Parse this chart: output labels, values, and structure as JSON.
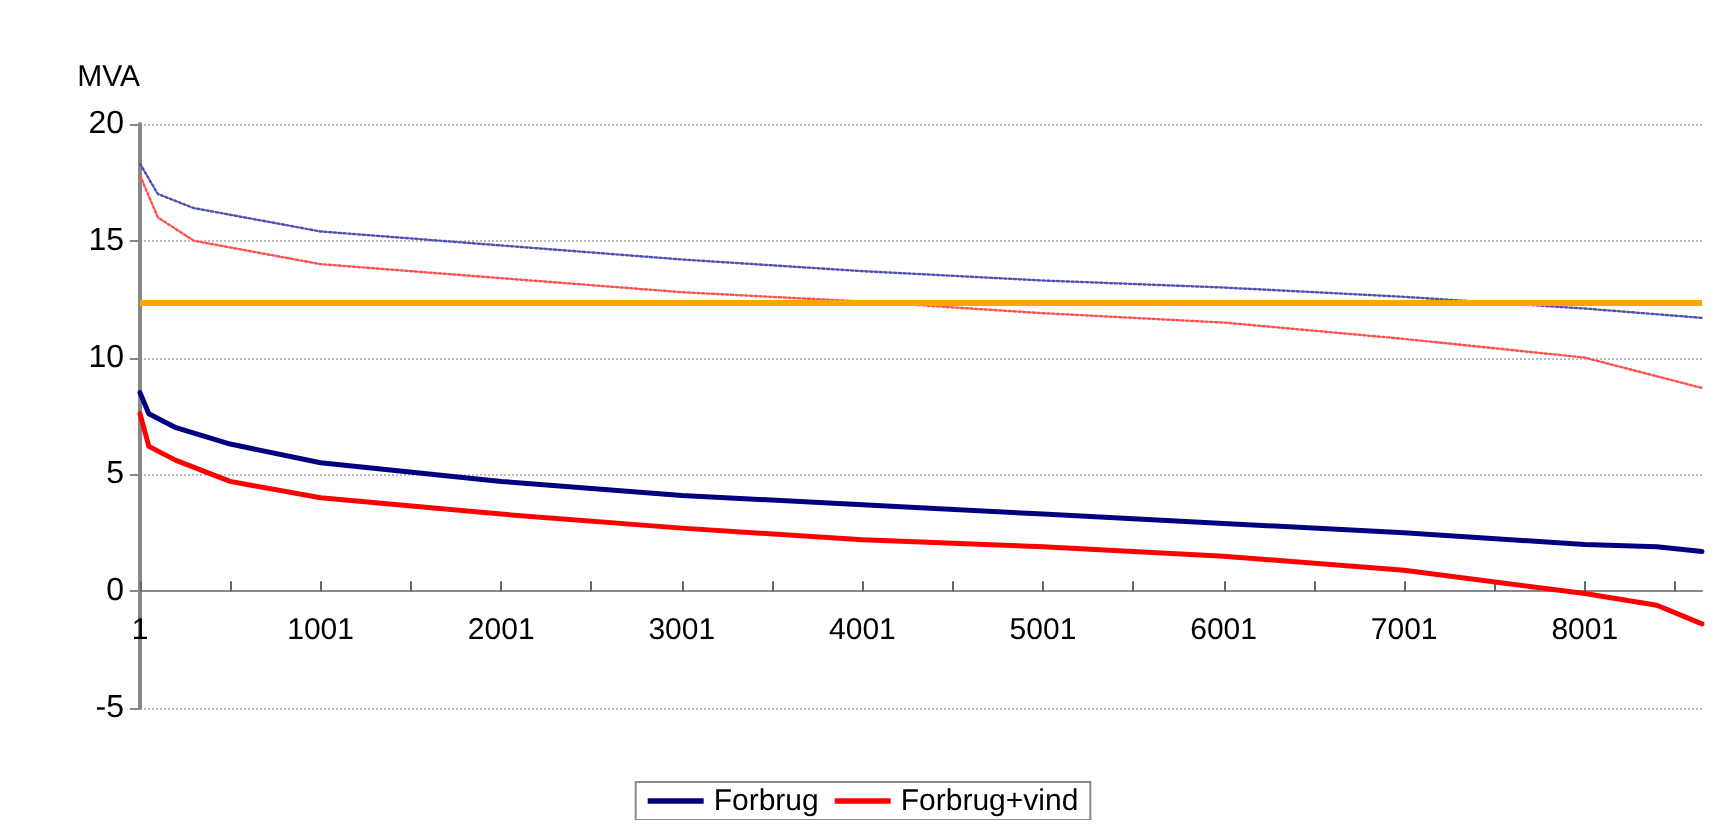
{
  "chart_data": {
    "type": "line",
    "ylabel": "MVA",
    "xlim": [
      1,
      8650
    ],
    "ylim": [
      -5,
      20
    ],
    "xticks": [
      1,
      {
        "value": 501,
        "label": null
      },
      1001,
      {
        "value": 1501,
        "label": null
      },
      2001,
      {
        "value": 2501,
        "label": null
      },
      3001,
      {
        "value": 3501,
        "label": null
      },
      4001,
      {
        "value": 4501,
        "label": null
      },
      5001,
      {
        "value": 5501,
        "label": null
      },
      6001,
      {
        "value": 6501,
        "label": null
      },
      7001,
      {
        "value": 7501,
        "label": null
      },
      8001,
      {
        "value": 8501,
        "label": null
      }
    ],
    "yticks": [
      -5,
      0,
      5,
      10,
      15,
      20
    ],
    "x": [
      1,
      50,
      200,
      500,
      1001,
      2001,
      3001,
      4001,
      5001,
      6001,
      7001,
      8001,
      8400,
      8650
    ],
    "series": [
      {
        "name": "Forbrug",
        "color": "#000080",
        "values": [
          8.5,
          7.6,
          7.0,
          6.3,
          5.5,
          4.7,
          4.1,
          3.7,
          3.3,
          2.9,
          2.5,
          2.0,
          1.9,
          1.7
        ]
      },
      {
        "name": "Forbrug+vind",
        "color": "#ff0000",
        "values": [
          7.6,
          6.2,
          5.6,
          4.7,
          4.0,
          3.3,
          2.7,
          2.2,
          1.9,
          1.5,
          0.9,
          -0.1,
          -0.6,
          -1.4
        ]
      },
      {
        "color": "#5050b0",
        "line_style": "dotted",
        "x": [
          1,
          100,
          300,
          1001,
          2001,
          3001,
          4001,
          5001,
          6001,
          7001,
          8001,
          8650
        ],
        "values": [
          18.3,
          17.0,
          16.4,
          15.4,
          14.8,
          14.2,
          13.7,
          13.3,
          13.0,
          12.6,
          12.1,
          11.7
        ]
      },
      {
        "color": "#ff5050",
        "line_style": "dotted",
        "x": [
          1,
          100,
          300,
          1001,
          2001,
          3001,
          4001,
          5001,
          6001,
          7001,
          8001,
          8650
        ],
        "values": [
          17.8,
          16.0,
          15.0,
          14.0,
          13.4,
          12.8,
          12.4,
          11.9,
          11.5,
          10.8,
          10.0,
          8.7
        ]
      }
    ],
    "ref_lines": [
      {
        "axis": "y",
        "value": 12.4,
        "color": "#ffa500"
      }
    ],
    "grid": "y",
    "legend": "bottom",
    "marker": "none",
    "line_style": "solid"
  }
}
